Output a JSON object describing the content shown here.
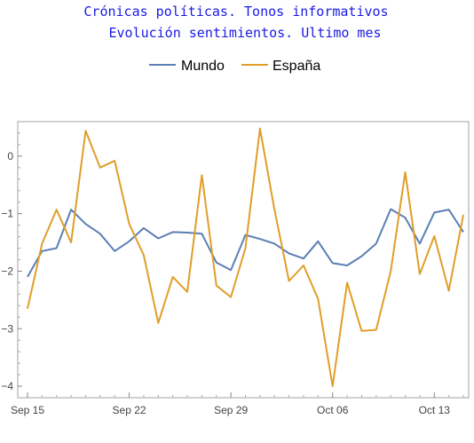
{
  "chart_data": {
    "type": "line",
    "title": "Crónicas políticas. Tonos informativos",
    "subtitle": "Evolución sentimientos. Ultimo mes",
    "xlabel": "",
    "ylabel": "",
    "ylim": [
      -4.2,
      0.6
    ],
    "xlim": [
      "2019-09-15",
      "2019-10-15"
    ],
    "x_ticks": [
      "Sep 15",
      "Sep 22",
      "Sep 29",
      "Oct 06",
      "Oct 13"
    ],
    "y_ticks": [
      "0",
      "−1",
      "−2",
      "−3",
      "−4"
    ],
    "legend_position": "top-center",
    "grid": false,
    "x": [
      "2019-09-15",
      "2019-09-16",
      "2019-09-17",
      "2019-09-18",
      "2019-09-19",
      "2019-09-20",
      "2019-09-21",
      "2019-09-22",
      "2019-09-23",
      "2019-09-24",
      "2019-09-25",
      "2019-09-26",
      "2019-09-27",
      "2019-09-28",
      "2019-09-29",
      "2019-09-30",
      "2019-10-01",
      "2019-10-02",
      "2019-10-03",
      "2019-10-04",
      "2019-10-05",
      "2019-10-06",
      "2019-10-07",
      "2019-10-08",
      "2019-10-09",
      "2019-10-10",
      "2019-10-11",
      "2019-10-12",
      "2019-10-13",
      "2019-10-14",
      "2019-10-15"
    ],
    "series": [
      {
        "name": "Mundo",
        "color": "#5b7fb4",
        "values": [
          -2.1,
          -1.65,
          -1.6,
          -0.93,
          -1.18,
          -1.35,
          -1.65,
          -1.48,
          -1.25,
          -1.43,
          -1.32,
          -1.33,
          -1.35,
          -1.85,
          -1.98,
          -1.37,
          -1.44,
          -1.52,
          -1.69,
          -1.78,
          -1.48,
          -1.86,
          -1.9,
          -1.74,
          -1.52,
          -0.92,
          -1.07,
          -1.52,
          -0.98,
          -0.93,
          -1.32
        ]
      },
      {
        "name": "España",
        "color": "#e09e29",
        "values": [
          -2.65,
          -1.52,
          -0.93,
          -1.5,
          0.44,
          -0.2,
          -0.08,
          -1.18,
          -1.72,
          -2.9,
          -2.1,
          -2.36,
          -0.33,
          -2.25,
          -2.45,
          -1.6,
          0.48,
          -0.93,
          -2.17,
          -1.9,
          -2.48,
          -4.0,
          -2.2,
          -3.04,
          -3.02,
          -2.0,
          -0.28,
          -2.05,
          -1.39,
          -2.34,
          -1.02
        ]
      }
    ]
  }
}
